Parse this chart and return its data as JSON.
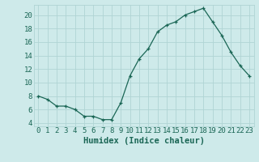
{
  "x": [
    0,
    1,
    2,
    3,
    4,
    5,
    6,
    7,
    8,
    9,
    10,
    11,
    12,
    13,
    14,
    15,
    16,
    17,
    18,
    19,
    20,
    21,
    22,
    23
  ],
  "y": [
    8,
    7.5,
    6.5,
    6.5,
    6,
    5,
    5,
    4.5,
    4.5,
    7,
    11,
    13.5,
    15,
    17.5,
    18.5,
    19,
    20,
    20.5,
    21,
    19,
    17,
    14.5,
    12.5,
    11
  ],
  "line_color": "#1a6655",
  "marker": "+",
  "marker_size": 3,
  "bg_color": "#ceeaea",
  "grid_color": "#b0d4d4",
  "xlabel": "Humidex (Indice chaleur)",
  "xlim": [
    -0.5,
    23.5
  ],
  "ylim": [
    3.5,
    21.5
  ],
  "yticks": [
    4,
    6,
    8,
    10,
    12,
    14,
    16,
    18,
    20
  ],
  "xtick_labels": [
    "0",
    "1",
    "2",
    "3",
    "4",
    "5",
    "6",
    "7",
    "8",
    "9",
    "10",
    "11",
    "12",
    "13",
    "14",
    "15",
    "16",
    "17",
    "18",
    "19",
    "20",
    "21",
    "22",
    "23"
  ],
  "tick_fontsize": 6.5,
  "label_fontsize": 7.5
}
